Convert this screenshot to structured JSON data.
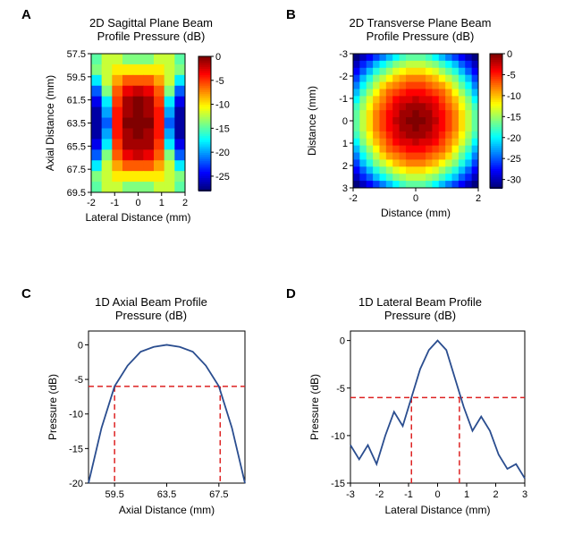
{
  "panelA": {
    "label": "A",
    "title": "2D Sagittal Plane Beam\nProfile Pressure (dB)",
    "xlabel": "Lateral Distance (mm)",
    "ylabel": "Axial Distance (mm)",
    "xticks": [
      -2,
      -1,
      0,
      1,
      2
    ],
    "yticks": [
      57.5,
      59.5,
      61.5,
      63.5,
      65.5,
      67.5,
      69.5
    ],
    "colorbar_ticks": [
      0,
      -5,
      -10,
      -15,
      -20,
      -25
    ],
    "heatmap": {
      "width_cells": 9,
      "height_cells": 13,
      "data": [
        [
          -15,
          -12,
          -12,
          -14,
          -14,
          -14,
          -12,
          -12,
          -15
        ],
        [
          -14,
          -12,
          -10,
          -10,
          -10,
          -10,
          -10,
          -12,
          -14
        ],
        [
          -18,
          -12,
          -8,
          -6,
          -6,
          -6,
          -8,
          -12,
          -18
        ],
        [
          -22,
          -14,
          -6,
          -3,
          -2,
          -3,
          -6,
          -14,
          -22
        ],
        [
          -25,
          -18,
          -5,
          -1,
          0,
          -1,
          -5,
          -18,
          -25
        ],
        [
          -27,
          -20,
          -4,
          -1,
          0,
          -1,
          -4,
          -20,
          -27
        ],
        [
          -27,
          -22,
          -4,
          0,
          0,
          0,
          -4,
          -22,
          -27
        ],
        [
          -27,
          -20,
          -4,
          -1,
          0,
          -1,
          -4,
          -20,
          -27
        ],
        [
          -25,
          -18,
          -5,
          -1,
          -1,
          -1,
          -5,
          -18,
          -25
        ],
        [
          -22,
          -14,
          -6,
          -3,
          -2,
          -3,
          -6,
          -14,
          -22
        ],
        [
          -18,
          -12,
          -8,
          -6,
          -6,
          -6,
          -8,
          -12,
          -18
        ],
        [
          -14,
          -12,
          -10,
          -10,
          -10,
          -10,
          -10,
          -12,
          -14
        ],
        [
          -15,
          -12,
          -12,
          -14,
          -14,
          -14,
          -12,
          -12,
          -15
        ]
      ],
      "vmin": -28,
      "vmax": 0
    }
  },
  "panelB": {
    "label": "B",
    "title": "2D Transverse Plane Beam\nProfile Pressure (dB)",
    "xlabel": "Distance (mm)",
    "ylabel": "Distance (mm)",
    "xticks": [
      -2,
      0,
      2
    ],
    "yticks": [
      -3,
      -2,
      -1,
      0,
      1,
      2,
      3
    ],
    "colorbar_ticks": [
      0,
      -5,
      -10,
      -15,
      -20,
      -25,
      -30
    ],
    "heatmap": {
      "width_cells": 19,
      "height_cells": 19,
      "data": [
        [
          -32,
          -30,
          -28,
          -26,
          -24,
          -22,
          -20,
          -18,
          -17,
          -17,
          -17,
          -18,
          -20,
          -22,
          -24,
          -26,
          -28,
          -30,
          -32
        ],
        [
          -30,
          -27,
          -25,
          -22,
          -20,
          -18,
          -16,
          -15,
          -14,
          -14,
          -14,
          -15,
          -16,
          -18,
          -20,
          -22,
          -25,
          -27,
          -30
        ],
        [
          -28,
          -25,
          -22,
          -19,
          -17,
          -15,
          -13,
          -12,
          -11,
          -11,
          -11,
          -12,
          -13,
          -15,
          -17,
          -19,
          -22,
          -25,
          -28
        ],
        [
          -26,
          -22,
          -19,
          -16,
          -14,
          -12,
          -10,
          -9,
          -8,
          -8,
          -8,
          -9,
          -10,
          -12,
          -14,
          -16,
          -19,
          -22,
          -26
        ],
        [
          -24,
          -20,
          -17,
          -14,
          -11,
          -9,
          -8,
          -7,
          -6,
          -6,
          -6,
          -7,
          -8,
          -9,
          -11,
          -14,
          -17,
          -20,
          -24
        ],
        [
          -22,
          -18,
          -15,
          -12,
          -9,
          -7,
          -6,
          -5,
          -4,
          -4,
          -4,
          -5,
          -6,
          -7,
          -9,
          -12,
          -15,
          -18,
          -22
        ],
        [
          -20,
          -16,
          -13,
          -10,
          -8,
          -6,
          -4,
          -3,
          -3,
          -2,
          -3,
          -3,
          -4,
          -6,
          -8,
          -10,
          -13,
          -16,
          -20
        ],
        [
          -18,
          -15,
          -12,
          -9,
          -7,
          -5,
          -3,
          -2,
          -1,
          -1,
          -1,
          -2,
          -3,
          -5,
          -7,
          -9,
          -12,
          -15,
          -18
        ],
        [
          -17,
          -14,
          -11,
          -8,
          -6,
          -4,
          -3,
          -1,
          -1,
          0,
          -1,
          -1,
          -3,
          -4,
          -6,
          -8,
          -11,
          -14,
          -17
        ],
        [
          -17,
          -14,
          -11,
          -8,
          -6,
          -4,
          -2,
          -1,
          0,
          0,
          0,
          -1,
          -2,
          -4,
          -6,
          -8,
          -11,
          -14,
          -17
        ],
        [
          -17,
          -14,
          -11,
          -8,
          -6,
          -4,
          -3,
          -1,
          -1,
          0,
          -1,
          -1,
          -3,
          -4,
          -6,
          -8,
          -11,
          -14,
          -17
        ],
        [
          -18,
          -15,
          -12,
          -9,
          -7,
          -5,
          -3,
          -2,
          -1,
          -1,
          -1,
          -2,
          -3,
          -5,
          -7,
          -9,
          -12,
          -15,
          -18
        ],
        [
          -20,
          -16,
          -13,
          -10,
          -8,
          -6,
          -4,
          -3,
          -3,
          -2,
          -3,
          -3,
          -4,
          -6,
          -8,
          -10,
          -13,
          -16,
          -20
        ],
        [
          -22,
          -18,
          -15,
          -12,
          -9,
          -7,
          -6,
          -5,
          -4,
          -4,
          -4,
          -5,
          -6,
          -7,
          -9,
          -12,
          -15,
          -18,
          -22
        ],
        [
          -24,
          -20,
          -17,
          -14,
          -11,
          -9,
          -8,
          -7,
          -6,
          -6,
          -6,
          -7,
          -8,
          -9,
          -11,
          -14,
          -17,
          -20,
          -24
        ],
        [
          -26,
          -22,
          -19,
          -16,
          -14,
          -12,
          -10,
          -9,
          -8,
          -8,
          -8,
          -9,
          -10,
          -12,
          -14,
          -16,
          -19,
          -22,
          -26
        ],
        [
          -28,
          -25,
          -22,
          -19,
          -17,
          -15,
          -13,
          -12,
          -11,
          -11,
          -11,
          -12,
          -13,
          -15,
          -17,
          -19,
          -22,
          -25,
          -28
        ],
        [
          -30,
          -27,
          -25,
          -22,
          -20,
          -18,
          -16,
          -15,
          -14,
          -14,
          -14,
          -15,
          -16,
          -18,
          -20,
          -22,
          -25,
          -27,
          -30
        ],
        [
          -32,
          -30,
          -28,
          -26,
          -24,
          -22,
          -20,
          -18,
          -17,
          -17,
          -17,
          -18,
          -20,
          -22,
          -24,
          -26,
          -28,
          -30,
          -32
        ]
      ],
      "vmin": -32,
      "vmax": 0
    }
  },
  "panelC": {
    "label": "C",
    "title": "1D Axial Beam Profile\nPressure (dB)",
    "xlabel": "Axial Distance (mm)",
    "ylabel": "Pressure (dB)",
    "xticks": [
      59.5,
      63.5,
      67.5
    ],
    "yticks": [
      0,
      -5,
      -10,
      -15,
      -20
    ],
    "xlim": [
      57.5,
      69.5
    ],
    "ylim": [
      -20,
      2
    ],
    "line_data": {
      "x": [
        57.5,
        58.5,
        59.5,
        60.5,
        61.5,
        62.5,
        63.5,
        64.5,
        65.5,
        66.5,
        67.5,
        68.5,
        69.5
      ],
      "y": [
        -20,
        -12,
        -6,
        -3,
        -1,
        -0.3,
        0,
        -0.3,
        -1,
        -3,
        -6,
        -12,
        -20
      ]
    },
    "line_color": "#2a4d8f",
    "ref_line_color": "#d22",
    "hline_y": -6,
    "vline1_x": 59.5,
    "vline2_x": 67.6
  },
  "panelD": {
    "label": "D",
    "title": "1D Lateral Beam Profile\nPressure (dB)",
    "xlabel": "Lateral Distance (mm)",
    "ylabel": "Pressure (dB)",
    "xticks": [
      -3,
      -2,
      -1,
      0,
      1,
      2,
      3
    ],
    "yticks": [
      0,
      -5,
      -10,
      -15
    ],
    "xlim": [
      -3,
      3
    ],
    "ylim": [
      -15,
      1
    ],
    "line_data": {
      "x": [
        -3,
        -2.7,
        -2.4,
        -2.1,
        -1.8,
        -1.5,
        -1.2,
        -0.9,
        -0.6,
        -0.3,
        0,
        0.3,
        0.6,
        0.9,
        1.2,
        1.5,
        1.8,
        2.1,
        2.4,
        2.7,
        3
      ],
      "y": [
        -11,
        -12.5,
        -11,
        -13,
        -10,
        -7.5,
        -9,
        -6,
        -3,
        -1,
        0,
        -1,
        -4,
        -7,
        -9.5,
        -8,
        -9.5,
        -12,
        -13.5,
        -13,
        -14.5
      ]
    },
    "line_color": "#2a4d8f",
    "ref_line_color": "#d22",
    "hline_y": -6,
    "vline1_x": -0.9,
    "vline2_x": 0.75
  },
  "colors": {
    "background": "#ffffff",
    "text": "#000000",
    "axis": "#000000"
  }
}
